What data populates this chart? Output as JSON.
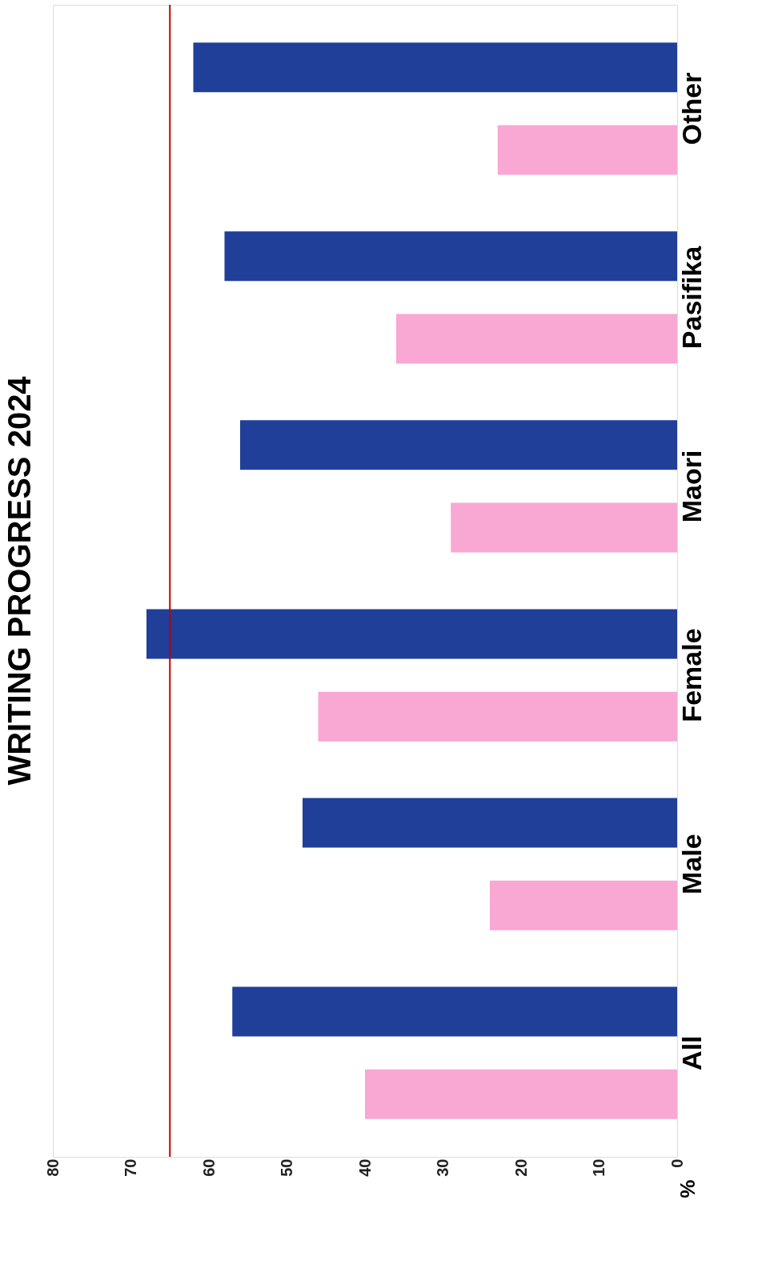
{
  "chart_data": {
    "type": "bar",
    "title": "WRITING PROGRESS 2024",
    "ylabel": "%",
    "orientation": "horizontal",
    "categories": [
      "Other",
      "Pasifika",
      "Maori",
      "Female",
      "Male",
      "All"
    ],
    "series": [
      {
        "color": "#1f3f99",
        "values": [
          62,
          58,
          56,
          68,
          48,
          57
        ]
      },
      {
        "color": "#f9a7d3",
        "values": [
          23,
          36,
          29,
          46,
          24,
          40
        ]
      }
    ],
    "xlim": [
      80,
      0
    ],
    "xticks": [
      0,
      10,
      20,
      30,
      40,
      50,
      60,
      70,
      80
    ],
    "ref_lines": [
      {
        "axis": "x",
        "value": 65,
        "label": null,
        "color": "#c00000"
      }
    ],
    "grid": false
  }
}
